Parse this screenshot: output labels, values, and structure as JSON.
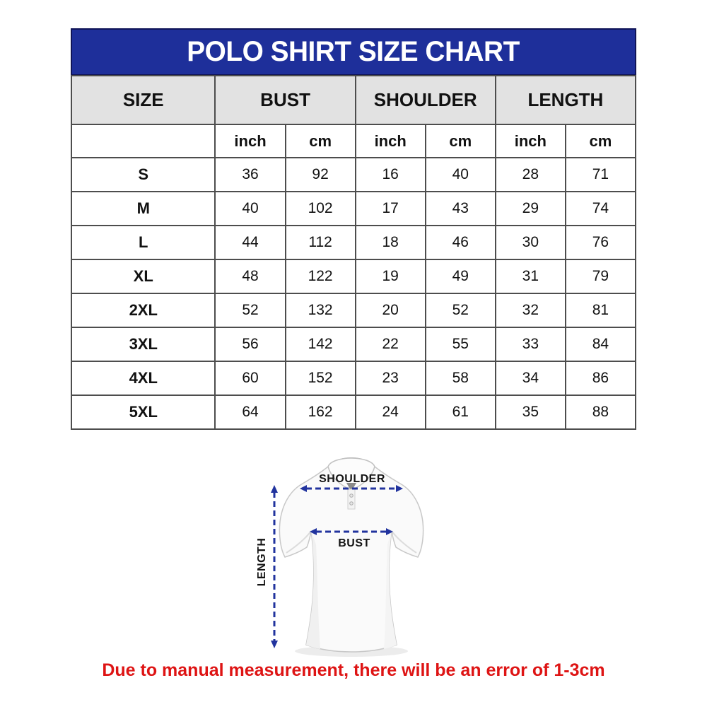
{
  "banner": {
    "title": "POLO SHIRT SIZE CHART",
    "bg": "#1e2f9a",
    "text_color": "#ffffff"
  },
  "table": {
    "size_header": "SIZE",
    "groups": [
      "BUST",
      "SHOULDER",
      "LENGTH"
    ],
    "units": [
      "inch",
      "cm"
    ],
    "rows": [
      {
        "size": "S",
        "values": [
          "36",
          "92",
          "16",
          "40",
          "28",
          "71"
        ]
      },
      {
        "size": "M",
        "values": [
          "40",
          "102",
          "17",
          "43",
          "29",
          "74"
        ]
      },
      {
        "size": "L",
        "values": [
          "44",
          "112",
          "18",
          "46",
          "30",
          "76"
        ]
      },
      {
        "size": "XL",
        "values": [
          "48",
          "122",
          "19",
          "49",
          "31",
          "79"
        ]
      },
      {
        "size": "2XL",
        "values": [
          "52",
          "132",
          "20",
          "52",
          "32",
          "81"
        ]
      },
      {
        "size": "3XL",
        "values": [
          "56",
          "142",
          "22",
          "55",
          "33",
          "84"
        ]
      },
      {
        "size": "4XL",
        "values": [
          "60",
          "152",
          "23",
          "58",
          "34",
          "86"
        ]
      },
      {
        "size": "5XL",
        "values": [
          "64",
          "162",
          "24",
          "61",
          "35",
          "88"
        ]
      }
    ]
  },
  "diagram": {
    "shoulder_label": "SHOULDER",
    "bust_label": "BUST",
    "length_label": "LENGTH",
    "arrow_color": "#21339e"
  },
  "note": {
    "text": "Due to manual measurement, there will be an error of 1-3cm",
    "color": "#de1414"
  },
  "chart_data": {
    "type": "table",
    "title": "POLO SHIRT SIZE CHART",
    "columns": [
      "SIZE",
      "BUST (inch)",
      "BUST (cm)",
      "SHOULDER (inch)",
      "SHOULDER (cm)",
      "LENGTH (inch)",
      "LENGTH (cm)"
    ],
    "rows": [
      [
        "S",
        36,
        92,
        16,
        40,
        28,
        71
      ],
      [
        "M",
        40,
        102,
        17,
        43,
        29,
        74
      ],
      [
        "L",
        44,
        112,
        18,
        46,
        30,
        76
      ],
      [
        "XL",
        48,
        122,
        19,
        49,
        31,
        79
      ],
      [
        "2XL",
        52,
        132,
        20,
        52,
        32,
        81
      ],
      [
        "3XL",
        56,
        142,
        22,
        55,
        33,
        84
      ],
      [
        "4XL",
        60,
        152,
        23,
        58,
        34,
        86
      ],
      [
        "5XL",
        64,
        162,
        24,
        61,
        35,
        88
      ]
    ],
    "annotation": "Due to manual measurement, there will be an error of 1-3cm",
    "measured_dimensions": [
      "SHOULDER",
      "BUST",
      "LENGTH"
    ]
  }
}
